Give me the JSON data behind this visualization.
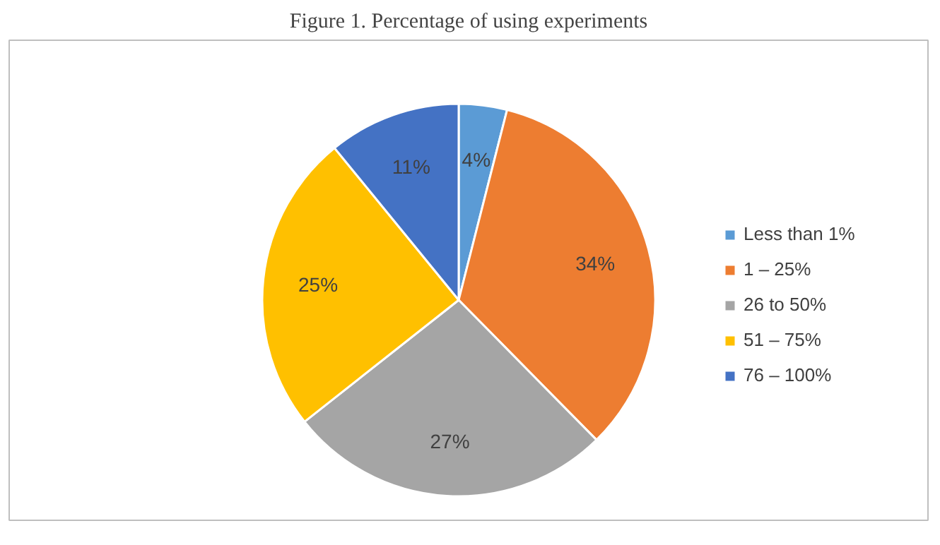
{
  "chart_data": {
    "type": "pie",
    "title": "Figure 1. Percentage of using experiments",
    "categories": [
      "Less than 1%",
      "1 – 25%",
      "26 to 50%",
      "51 – 75%",
      "76 – 100%"
    ],
    "values": [
      4,
      34,
      27,
      25,
      11
    ],
    "colors": [
      "#5b9bd5",
      "#ed7d31",
      "#a5a5a5",
      "#ffc000",
      "#4472c4"
    ],
    "value_labels": [
      "4%",
      "34%",
      "27%",
      "25%",
      "11%"
    ],
    "legend": "right"
  }
}
